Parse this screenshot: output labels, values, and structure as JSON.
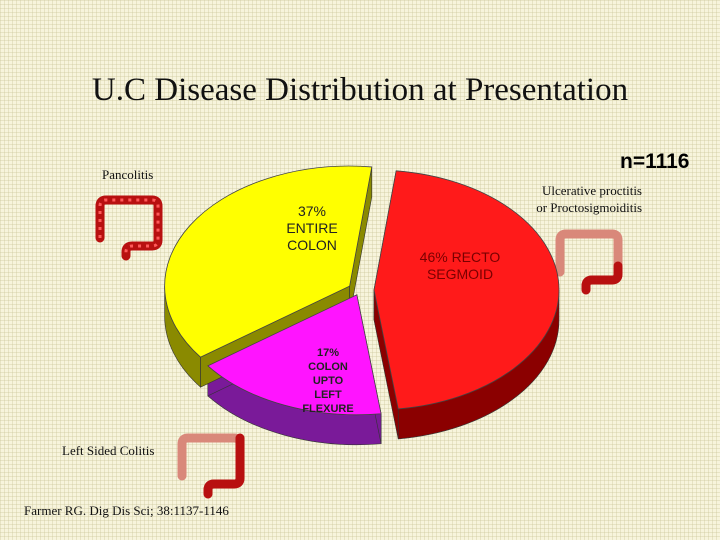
{
  "title": "U.C Disease Distribution at Presentation",
  "n_label": "n=1116",
  "captions": {
    "pancolitis": "Pancolitis",
    "ulcerative_line1": "Ulcerative proctitis",
    "ulcerative_line2": "or Proctosigmoiditis",
    "left_sided": "Left Sided Colitis"
  },
  "source": "Farmer RG. Dig Dis Sci; 38:1137-1146",
  "icons": [
    "colon-icon-pancolitis",
    "colon-icon-proctitis",
    "colon-icon-left-sided"
  ],
  "chart_data": {
    "type": "pie",
    "title": "U.C Disease Distribution at Presentation",
    "slices": [
      {
        "label_lines": [
          "46% RECTO",
          "SEGMOID"
        ],
        "value": 46,
        "color": "#ff1a1a",
        "side_color": "#8b0000"
      },
      {
        "label_lines": [
          "17%",
          "COLON",
          "UPTO",
          "LEFT",
          "FLEXURE"
        ],
        "value": 17,
        "color": "#ff14ff",
        "side_color": "#7a1a99"
      },
      {
        "label_lines": [
          "37%",
          "ENTIRE",
          "COLON"
        ],
        "value": 37,
        "color": "#ffff00",
        "side_color": "#8a8a00"
      }
    ]
  }
}
